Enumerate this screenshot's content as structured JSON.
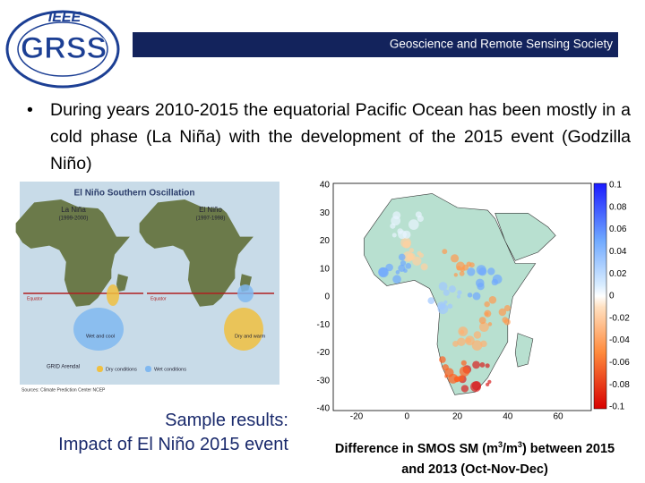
{
  "header": {
    "logo": {
      "top": "IEEE",
      "main": "GRSS"
    },
    "banner": "Geoscience and Remote Sensing Society"
  },
  "bullet": "During years 2010-2015 the equatorial Pacific Ocean has been mostly in a cold phase (La Niña) with the development of the 2015 event (Godzilla Niño)",
  "enso_figure": {
    "title": "El Niño Southern Oscillation",
    "left_panel": {
      "title": "La Niña",
      "period": "(1999-2000)",
      "equator": "Equator",
      "note": "Wet and cool"
    },
    "right_panel": {
      "title": "El Niño",
      "period": "(1997-1998)",
      "equator": "Equator",
      "note": "Dry and warm"
    },
    "legend": [
      "Dry conditions",
      "Wet conditions"
    ],
    "source": "Sources: Climate Prediction Center NCEP",
    "credit": "GRID Arendal"
  },
  "caption_left": {
    "line1": "Sample results:",
    "line2": "Impact of El Niño 2015 event"
  },
  "map": {
    "yticks": [
      "40",
      "30",
      "20",
      "10",
      "0",
      "-10",
      "-20",
      "-30",
      "-40"
    ],
    "xticks": [
      "-20",
      "0",
      "20",
      "40",
      "60"
    ],
    "colorbar_ticks": [
      "0.1",
      "0.08",
      "0.06",
      "0.04",
      "0.02",
      "0",
      "-0.02",
      "-0.04",
      "-0.06",
      "-0.08",
      "-0.1"
    ]
  },
  "caption_right": {
    "part1": "Difference in SMOS SM (m",
    "sup1": "3",
    "part2": "/m",
    "sup2": "3",
    "part3": ") between 2015",
    "line2": "and 2013 (Oct-Nov-Dec)"
  }
}
